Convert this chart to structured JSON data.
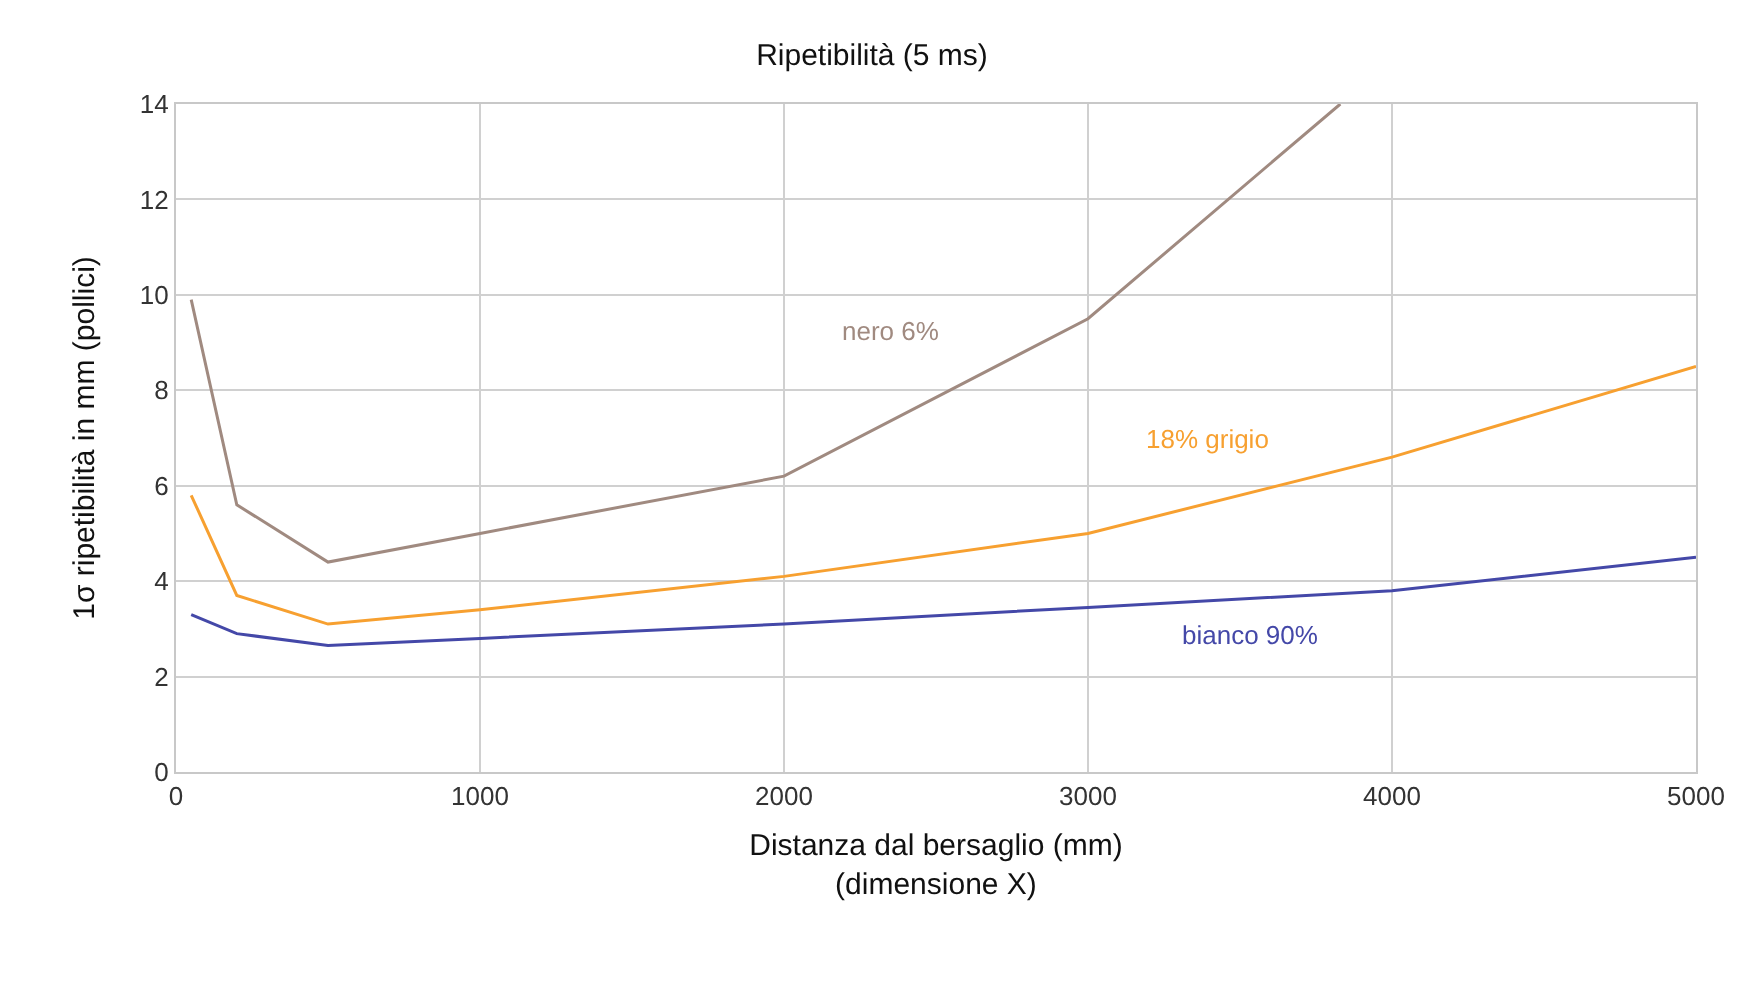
{
  "chart_data": {
    "type": "line",
    "title": "Ripetibilità (5 ms)",
    "xlabel": "Distanza dal bersaglio (mm)\n(dimensione X)",
    "ylabel": "1σ ripetibilità in mm (pollici)",
    "xlim": [
      0,
      5000
    ],
    "xticks": [
      0,
      1000,
      2000,
      3000,
      4000,
      5000
    ],
    "ylim": [
      0,
      14
    ],
    "yticks": [
      0,
      2,
      4,
      6,
      8,
      10,
      12,
      14
    ],
    "grid": true,
    "legend": false,
    "series": [
      {
        "name": "nero 6%",
        "color": "#a08a80",
        "x": [
          50,
          200,
          500,
          1000,
          2000,
          3000,
          3830
        ],
        "values": [
          9.9,
          5.6,
          4.4,
          5.0,
          6.2,
          9.5,
          14
        ]
      },
      {
        "name": "18% grigio",
        "color": "#f7a030",
        "x": [
          50,
          200,
          500,
          1000,
          2000,
          3000,
          4000,
          5000
        ],
        "values": [
          5.8,
          3.7,
          3.1,
          3.4,
          4.1,
          5.0,
          6.6,
          8.5
        ]
      },
      {
        "name": "bianco 90%",
        "color": "#4448a8",
        "x": [
          50,
          200,
          500,
          1000,
          2000,
          3000,
          4000,
          5000
        ],
        "values": [
          3.3,
          2.9,
          2.65,
          2.8,
          3.1,
          3.45,
          3.8,
          4.5
        ]
      }
    ]
  }
}
